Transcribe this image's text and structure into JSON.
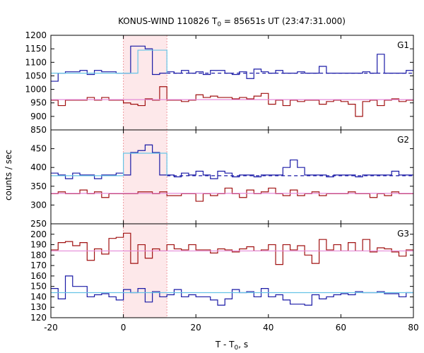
{
  "chart_data": {
    "type": "line",
    "title": "KONUS-WIND 110826 T",
    "title_sub": "0",
    "title_rest": " = 85651s UT (23:47:31.000)",
    "xlabel": "T - T",
    "xlabel_sub": "0",
    "xlabel_rest": ", s",
    "ylabel": "counts / sec",
    "xlim": [
      -20,
      80
    ],
    "x_ticks": [
      -20,
      0,
      20,
      40,
      60,
      80
    ],
    "highlight": {
      "x_start": 0,
      "x_end": 12,
      "color": "#fde8ea"
    },
    "bin_width": 2,
    "bin_start": -20,
    "panels": [
      {
        "label": "G1",
        "ylim": [
          850,
          1200
        ],
        "y_ticks": [
          850,
          900,
          950,
          1000,
          1050,
          1100,
          1150,
          1200
        ],
        "series": [
          {
            "color": "#1a1aa6",
            "kind": "step",
            "values": [
              1030,
              1060,
              1065,
              1065,
              1070,
              1055,
              1070,
              1065,
              1065,
              1060,
              1060,
              1160,
              1160,
              1150,
              1055,
              1060,
              1065,
              1060,
              1070,
              1060,
              1065,
              1055,
              1070,
              1070,
              1060,
              1055,
              1065,
              1040,
              1075,
              1065,
              1060,
              1070,
              1060,
              1060,
              1065,
              1060,
              1060,
              1085,
              1060,
              1060,
              1060,
              1060,
              1060,
              1065,
              1060,
              1130,
              1060,
              1060,
              1060,
              1070
            ]
          },
          {
            "color": "#a01010",
            "kind": "step",
            "values": [
              960,
              940,
              960,
              960,
              960,
              970,
              960,
              970,
              960,
              960,
              950,
              945,
              940,
              965,
              960,
              1010,
              960,
              960,
              955,
              960,
              980,
              970,
              975,
              970,
              970,
              965,
              970,
              965,
              975,
              985,
              945,
              960,
              940,
              960,
              955,
              960,
              960,
              945,
              955,
              960,
              955,
              945,
              900,
              955,
              960,
              940,
              960,
              965,
              955,
              960
            ]
          },
          {
            "color": "#1a1aa6",
            "kind": "hline",
            "value": 1060,
            "x_start": 12,
            "x_end": 80,
            "dashed": true
          },
          {
            "color": "#67c4e6",
            "kind": "fit",
            "value": 1060,
            "peak_start": 4,
            "peak_end": 12,
            "peak_value": 1145
          },
          {
            "color": "#e58ad8",
            "kind": "hline",
            "value": 962,
            "x_start": -20,
            "x_end": 80,
            "dashed": false
          }
        ]
      },
      {
        "label": "G2",
        "ylim": [
          250,
          500
        ],
        "y_ticks": [
          250,
          300,
          350,
          400,
          450
        ],
        "series": [
          {
            "color": "#1a1aa6",
            "kind": "step",
            "values": [
              385,
              380,
              370,
              385,
              380,
              380,
              370,
              380,
              380,
              385,
              380,
              440,
              445,
              460,
              440,
              380,
              380,
              375,
              385,
              380,
              390,
              380,
              370,
              390,
              385,
              375,
              380,
              380,
              375,
              380,
              380,
              380,
              400,
              420,
              400,
              380,
              380,
              380,
              375,
              380,
              380,
              380,
              375,
              380,
              380,
              380,
              380,
              390,
              380,
              380
            ]
          },
          {
            "color": "#a01010",
            "kind": "step",
            "values": [
              330,
              335,
              330,
              330,
              340,
              330,
              335,
              320,
              330,
              330,
              330,
              330,
              335,
              335,
              330,
              335,
              325,
              325,
              330,
              330,
              310,
              330,
              325,
              330,
              345,
              330,
              320,
              340,
              330,
              335,
              345,
              330,
              325,
              340,
              325,
              330,
              335,
              325,
              330,
              330,
              330,
              335,
              330,
              330,
              320,
              330,
              325,
              335,
              330,
              330
            ]
          },
          {
            "color": "#1a1aa6",
            "kind": "hline",
            "value": 378,
            "x_start": 12,
            "x_end": 80,
            "dashed": true
          },
          {
            "color": "#67c4e6",
            "kind": "fit",
            "value": 378,
            "peak_start": 0,
            "peak_end": 12,
            "peak_value": 438
          },
          {
            "color": "#e58ad8",
            "kind": "hline",
            "value": 331,
            "x_start": -20,
            "x_end": 80,
            "dashed": false
          }
        ]
      },
      {
        "label": "G3",
        "ylim": [
          120,
          210
        ],
        "y_ticks": [
          120,
          130,
          140,
          150,
          160,
          170,
          180,
          190,
          200
        ],
        "series": [
          {
            "color": "#a01010",
            "kind": "step",
            "values": [
              185,
              192,
              193,
              189,
              192,
              175,
              186,
              181,
              196,
              197,
              201,
              172,
              190,
              177,
              186,
              184,
              190,
              186,
              185,
              190,
              185,
              185,
              182,
              186,
              185,
              183,
              186,
              188,
              184,
              185,
              190,
              171,
              190,
              185,
              189,
              180,
              172,
              195,
              185,
              190,
              184,
              192,
              184,
              195,
              183,
              187,
              186,
              183,
              179,
              185
            ]
          },
          {
            "color": "#1a1aa6",
            "kind": "step",
            "values": [
              148,
              138,
              160,
              150,
              150,
              140,
              142,
              143,
              140,
              137,
              147,
              144,
              148,
              135,
              145,
              140,
              142,
              147,
              140,
              142,
              140,
              140,
              137,
              132,
              138,
              147,
              144,
              145,
              140,
              148,
              140,
              142,
              137,
              133,
              133,
              132,
              142,
              138,
              140,
              142,
              143,
              142,
              145,
              144,
              144,
              145,
              143,
              143,
              140,
              144
            ]
          },
          {
            "color": "#67c4e6",
            "kind": "hline",
            "value": 144,
            "x_start": -20,
            "x_end": 80,
            "dashed": false
          },
          {
            "color": "#e58ad8",
            "kind": "hline",
            "value": 184,
            "x_start": -20,
            "x_end": 80,
            "dashed": false
          }
        ]
      }
    ]
  }
}
